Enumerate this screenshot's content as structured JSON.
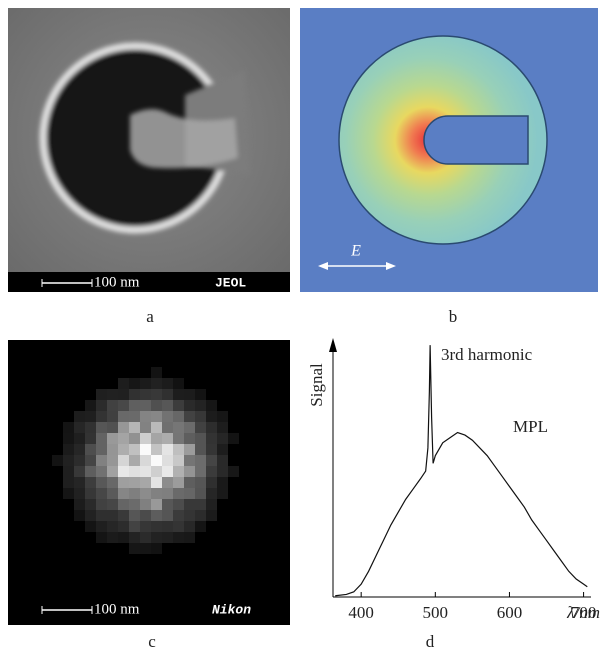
{
  "panels": [
    {
      "label": "a",
      "scale_bar": "100 nm",
      "brand": "JEOL"
    },
    {
      "label": "b",
      "field_label": "E"
    },
    {
      "label": "c",
      "scale_bar": "100 nm",
      "brand": "Nikon"
    }
  ],
  "chart_data": {
    "type": "line",
    "label": "d",
    "y_label": "Signal",
    "x_label": "λ/nm",
    "annotations": [
      "3rd harmonic",
      "MPL"
    ],
    "color": "#111111",
    "xlim": [
      362,
      710
    ],
    "xticks": [
      400,
      500,
      600,
      700
    ],
    "ylim": [
      0,
      100
    ],
    "x": [
      365,
      380,
      390,
      400,
      410,
      420,
      430,
      440,
      450,
      460,
      470,
      480,
      487,
      490,
      492,
      493,
      495,
      497,
      500,
      510,
      520,
      530,
      540,
      550,
      560,
      570,
      580,
      590,
      600,
      610,
      620,
      630,
      640,
      650,
      660,
      670,
      680,
      690,
      700,
      705
    ],
    "values": [
      0.5,
      1,
      2,
      5,
      10,
      16,
      22,
      28,
      33,
      38,
      42,
      46,
      49,
      58,
      80,
      98,
      70,
      52,
      55,
      60,
      62,
      64,
      63,
      61,
      58,
      55,
      51,
      47,
      43,
      39,
      35,
      30,
      26,
      22,
      18,
      14,
      10,
      7,
      5,
      4
    ]
  }
}
